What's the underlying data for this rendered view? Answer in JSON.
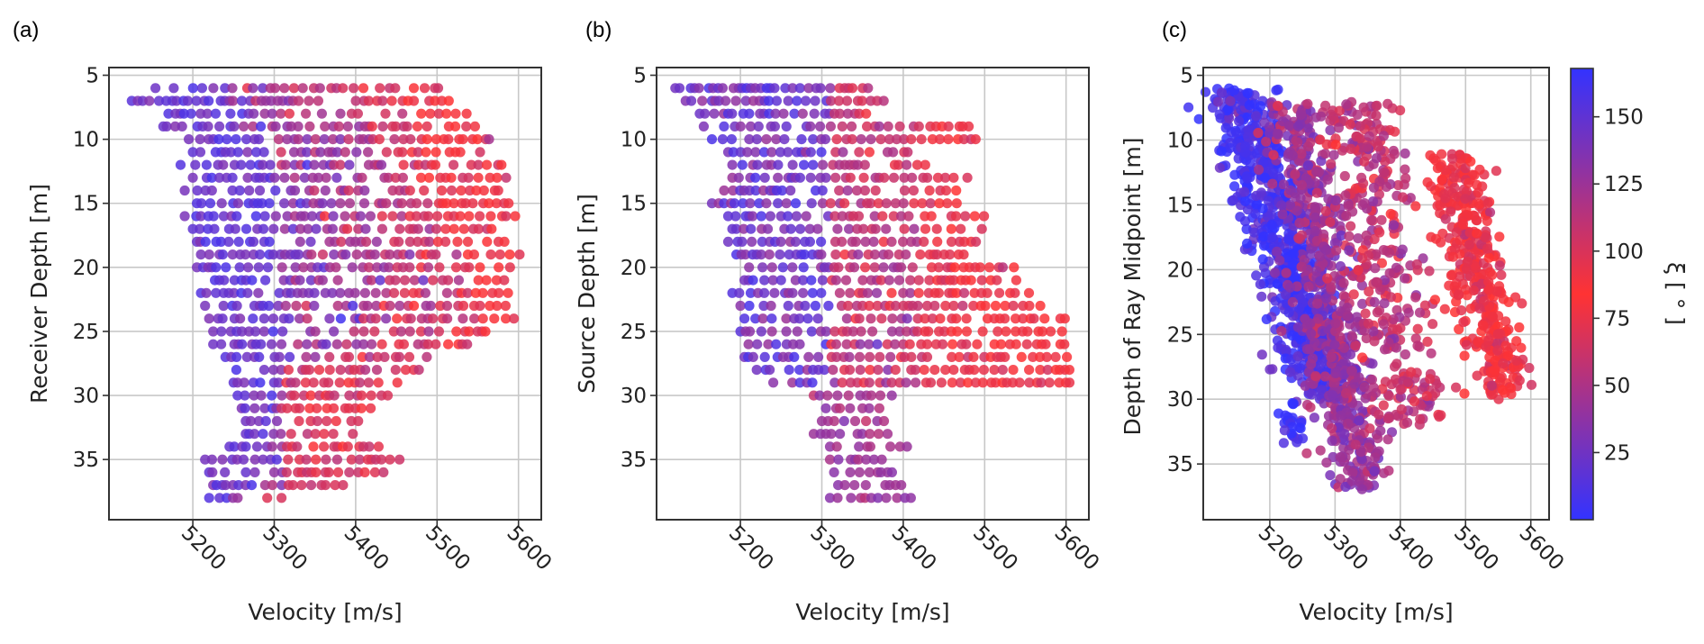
{
  "chart_data": [
    {
      "type": "scatter",
      "panel_label": "(a)",
      "title": "",
      "xlabel": "Velocity [m/s]",
      "ylabel": "Receiver Depth [m]",
      "xlim": [
        5097,
        5628
      ],
      "ylim": [
        39.7,
        4.4
      ],
      "y_inverted": true,
      "xticks": [
        5200,
        5300,
        5400,
        5500,
        5600
      ],
      "yticks": [
        5,
        10,
        15,
        20,
        25,
        30,
        35
      ],
      "grid": true,
      "color_by": "xi",
      "rows": [
        {
          "depth": 6,
          "vmin": 5150,
          "vmax": 5510,
          "red_from": 5450
        },
        {
          "depth": 7,
          "vmin": 5125,
          "vmax": 5520,
          "red_from": 5460
        },
        {
          "depth": 8,
          "vmin": 5170,
          "vmax": 5540,
          "red_from": 5460
        },
        {
          "depth": 9,
          "vmin": 5150,
          "vmax": 5560,
          "red_from": 5470
        },
        {
          "depth": 10,
          "vmin": 5195,
          "vmax": 5570,
          "red_from": 5480
        },
        {
          "depth": 11,
          "vmin": 5200,
          "vmax": 5560,
          "red_from": 5480
        },
        {
          "depth": 12,
          "vmin": 5185,
          "vmax": 5580,
          "red_from": 5490
        },
        {
          "depth": 13,
          "vmin": 5200,
          "vmax": 5590,
          "red_from": 5500
        },
        {
          "depth": 14,
          "vmin": 5190,
          "vmax": 5580,
          "red_from": 5500
        },
        {
          "depth": 15,
          "vmin": 5205,
          "vmax": 5590,
          "red_from": 5500
        },
        {
          "depth": 16,
          "vmin": 5190,
          "vmax": 5600,
          "red_from": 5510
        },
        {
          "depth": 17,
          "vmin": 5200,
          "vmax": 5585,
          "red_from": 5510
        },
        {
          "depth": 18,
          "vmin": 5205,
          "vmax": 5590,
          "red_from": 5520
        },
        {
          "depth": 19,
          "vmin": 5210,
          "vmax": 5605,
          "red_from": 5530
        },
        {
          "depth": 20,
          "vmin": 5205,
          "vmax": 5590,
          "red_from": 5530
        },
        {
          "depth": 21,
          "vmin": 5200,
          "vmax": 5590,
          "red_from": 5540
        },
        {
          "depth": 22,
          "vmin": 5210,
          "vmax": 5600,
          "red_from": 5540
        },
        {
          "depth": 23,
          "vmin": 5215,
          "vmax": 5590,
          "red_from": 5550
        },
        {
          "depth": 24,
          "vmin": 5220,
          "vmax": 5600,
          "red_from": 5560
        },
        {
          "depth": 25,
          "vmin": 5225,
          "vmax": 5560,
          "red_from": 5560
        },
        {
          "depth": 26,
          "vmin": 5225,
          "vmax": 5540,
          "red_from": 5560
        },
        {
          "depth": 27,
          "vmin": 5240,
          "vmax": 5500,
          "red_from": 5560
        },
        {
          "depth": 28,
          "vmin": 5245,
          "vmax": 5480,
          "red_from": 5560
        },
        {
          "depth": 29,
          "vmin": 5250,
          "vmax": 5460,
          "red_from": 5560
        },
        {
          "depth": 30,
          "vmin": 5255,
          "vmax": 5440,
          "red_from": 5560
        },
        {
          "depth": 31,
          "vmin": 5260,
          "vmax": 5420,
          "red_from": 5560
        },
        {
          "depth": 32,
          "vmin": 5265,
          "vmax": 5405,
          "red_from": 5560
        },
        {
          "depth": 33,
          "vmin": 5265,
          "vmax": 5400,
          "red_from": 5560
        },
        {
          "depth": 34,
          "vmin": 5245,
          "vmax": 5430,
          "red_from": 5560
        },
        {
          "depth": 35,
          "vmin": 5215,
          "vmax": 5455,
          "red_from": 5560
        },
        {
          "depth": 36,
          "vmin": 5220,
          "vmax": 5435,
          "red_from": 5560
        },
        {
          "depth": 37,
          "vmin": 5225,
          "vmax": 5400,
          "red_from": 5560
        },
        {
          "depth": 38,
          "vmin": 5220,
          "vmax": 5310,
          "red_from": 5560
        }
      ]
    },
    {
      "type": "scatter",
      "panel_label": "(b)",
      "title": "",
      "xlabel": "Velocity [m/s]",
      "ylabel": "Source Depth [m]",
      "xlim": [
        5097,
        5628
      ],
      "ylim": [
        39.7,
        4.4
      ],
      "y_inverted": true,
      "xticks": [
        5200,
        5300,
        5400,
        5500,
        5600
      ],
      "yticks": [
        5,
        10,
        15,
        20,
        25,
        30,
        35
      ],
      "grid": true,
      "color_by": "xi",
      "rows": [
        {
          "depth": 6,
          "vmin": 5120,
          "vmax": 5360
        },
        {
          "depth": 7,
          "vmin": 5125,
          "vmax": 5385
        },
        {
          "depth": 8,
          "vmin": 5150,
          "vmax": 5370
        },
        {
          "depth": 9,
          "vmin": 5155,
          "vmax": 5485
        },
        {
          "depth": 10,
          "vmin": 5165,
          "vmax": 5490
        },
        {
          "depth": 11,
          "vmin": 5185,
          "vmax": 5410
        },
        {
          "depth": 12,
          "vmin": 5190,
          "vmax": 5430
        },
        {
          "depth": 13,
          "vmin": 5190,
          "vmax": 5480
        },
        {
          "depth": 14,
          "vmin": 5180,
          "vmax": 5470
        },
        {
          "depth": 15,
          "vmin": 5165,
          "vmax": 5480
        },
        {
          "depth": 16,
          "vmin": 5185,
          "vmax": 5500
        },
        {
          "depth": 17,
          "vmin": 5190,
          "vmax": 5505
        },
        {
          "depth": 18,
          "vmin": 5185,
          "vmax": 5490
        },
        {
          "depth": 19,
          "vmin": 5195,
          "vmax": 5480
        },
        {
          "depth": 20,
          "vmin": 5200,
          "vmax": 5540
        },
        {
          "depth": 21,
          "vmin": 5205,
          "vmax": 5540
        },
        {
          "depth": 22,
          "vmin": 5190,
          "vmax": 5555
        },
        {
          "depth": 23,
          "vmin": 5200,
          "vmax": 5570
        },
        {
          "depth": 24,
          "vmin": 5205,
          "vmax": 5600
        },
        {
          "depth": 25,
          "vmin": 5200,
          "vmax": 5600
        },
        {
          "depth": 26,
          "vmin": 5210,
          "vmax": 5600
        },
        {
          "depth": 27,
          "vmin": 5205,
          "vmax": 5605
        },
        {
          "depth": 28,
          "vmin": 5220,
          "vmax": 5605
        },
        {
          "depth": 29,
          "vmin": 5230,
          "vmax": 5605
        },
        {
          "depth": 30,
          "vmin": 5290,
          "vmax": 5390
        },
        {
          "depth": 31,
          "vmin": 5305,
          "vmax": 5380
        },
        {
          "depth": 32,
          "vmin": 5300,
          "vmax": 5385
        },
        {
          "depth": 33,
          "vmin": 5290,
          "vmax": 5385
        },
        {
          "depth": 34,
          "vmin": 5310,
          "vmax": 5405
        },
        {
          "depth": 35,
          "vmin": 5310,
          "vmax": 5380
        },
        {
          "depth": 36,
          "vmin": 5315,
          "vmax": 5395
        },
        {
          "depth": 37,
          "vmin": 5320,
          "vmax": 5405
        },
        {
          "depth": 38,
          "vmin": 5310,
          "vmax": 5420
        }
      ]
    },
    {
      "type": "scatter",
      "panel_label": "(c)",
      "title": "",
      "xlabel": "Velocity [m/s]",
      "ylabel": "Depth of Ray Midpoint [m]",
      "xlim": [
        5098,
        5628
      ],
      "ylim": [
        39.3,
        4.4
      ],
      "y_inverted": true,
      "xticks": [
        5200,
        5300,
        5400,
        5500,
        5600
      ],
      "yticks": [
        5,
        10,
        15,
        20,
        25,
        30,
        35
      ],
      "grid": true,
      "color_by": "xi",
      "clusters": [
        {
          "name": "blue-diagonal-band",
          "v_center_top": 5150,
          "v_center_bottom": 5290,
          "depth_range": [
            6,
            30
          ],
          "spread": 45,
          "xi": 160,
          "count": 700
        },
        {
          "name": "purple-central-band",
          "v_center_top": 5230,
          "v_center_bottom": 5345,
          "depth_range": [
            7,
            37
          ],
          "spread": 40,
          "xi": 125,
          "count": 600
        },
        {
          "name": "magenta-spread",
          "v_center_top": 5330,
          "v_center_bottom": 5420,
          "depth_range": [
            7,
            32
          ],
          "spread": 55,
          "xi": 110,
          "count": 350
        },
        {
          "name": "red-right-lobe",
          "v_center_top": 5480,
          "v_center_bottom": 5560,
          "depth_range": [
            11,
            30
          ],
          "spread": 40,
          "xi": 85,
          "count": 380
        },
        {
          "name": "blue-lower-cluster",
          "v_center": 5235,
          "depth_range": [
            30,
            33.5
          ],
          "spread": 15,
          "xi": 170,
          "count": 25
        }
      ]
    }
  ],
  "colorbar": {
    "label": "ξ [ ° ]",
    "range": [
      0,
      168
    ],
    "ticks": [
      25,
      50,
      75,
      100,
      125,
      150
    ],
    "stops": [
      {
        "value": 0,
        "color": "#3333ff"
      },
      {
        "value": 84,
        "color": "#ff3333"
      },
      {
        "value": 168,
        "color": "#3333ff"
      }
    ]
  },
  "panels": [
    {
      "label": "(a)"
    },
    {
      "label": "(b)"
    },
    {
      "label": "(c)"
    }
  ]
}
